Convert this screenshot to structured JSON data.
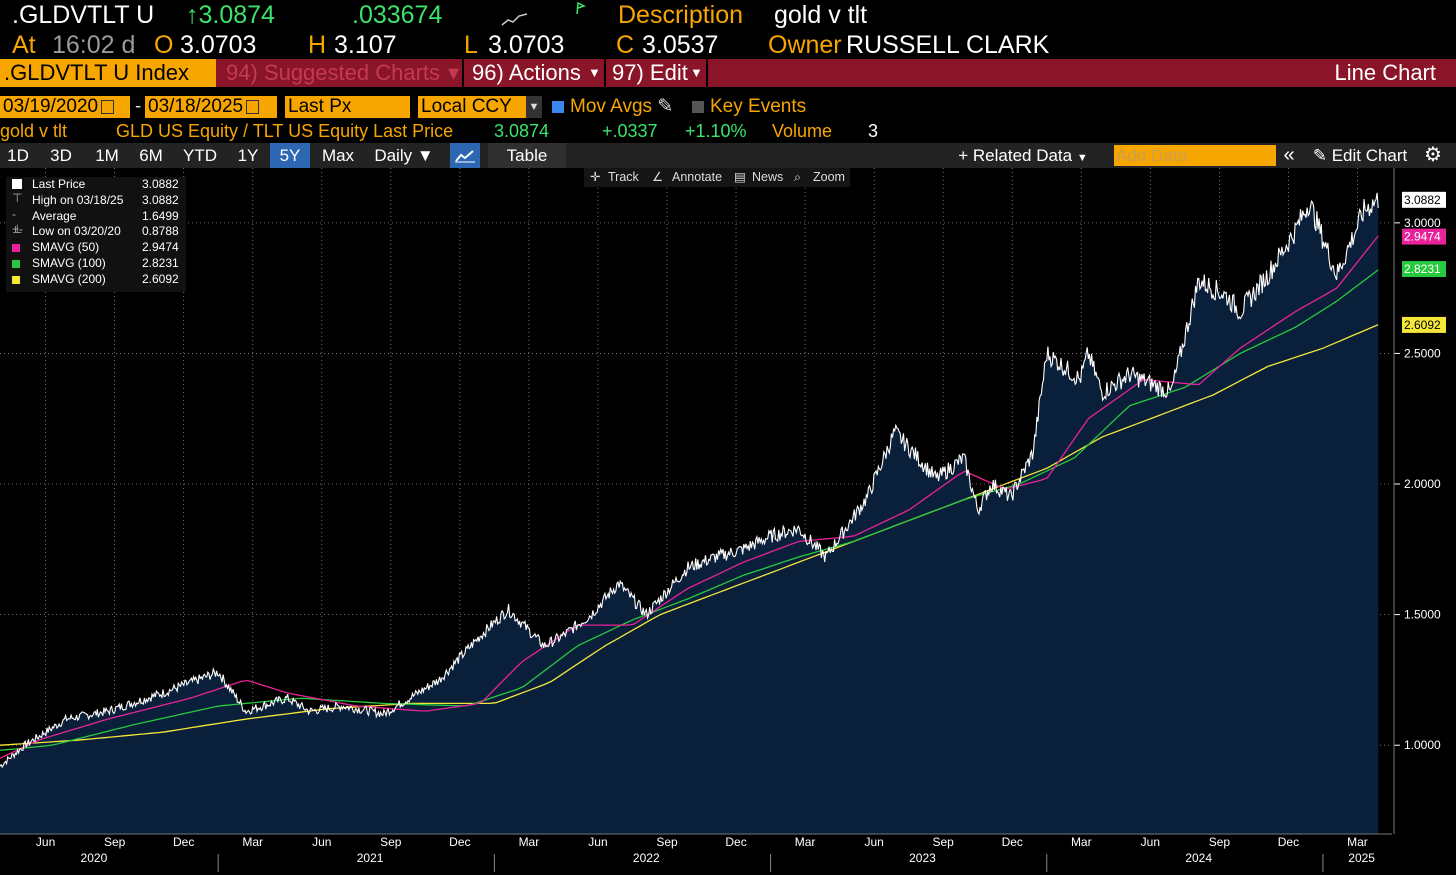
{
  "header": {
    "ticker": ".GLDVTLT U",
    "last": "↑3.0874",
    "change": ".033674",
    "description_label": "Description",
    "description": "gold v tlt",
    "at_label": "At",
    "time": "16:02 d",
    "open_label": "O",
    "open": "3.0703",
    "high_label": "H",
    "high": "3.107",
    "low_label": "L",
    "low": "3.0703",
    "close_label": "C",
    "close": "3.0537",
    "owner_label": "Owner",
    "owner": "RUSSELL CLARK"
  },
  "menubar": {
    "index": ".GLDVTLT U Index",
    "suggested": "94) Suggested Charts",
    "actions": "96) Actions",
    "edit": "97) Edit",
    "line_chart": "Line Chart"
  },
  "controls": {
    "start_date": "03/19/2020",
    "dash": "-",
    "end_date": "03/18/2025",
    "field": "Last Px",
    "currency": "Local CCY",
    "mov_avgs": "Mov Avgs",
    "key_events": "Key Events"
  },
  "info": {
    "name": "gold v tlt",
    "formula": "GLD US Equity / TLT US Equity Last Price",
    "last": "3.0874",
    "change": "+.0337",
    "pct": "+1.10%",
    "volume_label": "Volume",
    "volume": "3"
  },
  "rangebar": {
    "ranges": [
      "1D",
      "3D",
      "1M",
      "6M",
      "YTD",
      "1Y",
      "5Y",
      "Max"
    ],
    "selected": "5Y",
    "frequency": "Daily",
    "table": "Table",
    "related": "+ Related Data",
    "add_data": "Add Data",
    "edit_chart": "Edit Chart"
  },
  "chart_toolbar": {
    "track": "Track",
    "annotate": "Annotate",
    "news": "News",
    "zoom": "Zoom"
  },
  "legend": [
    {
      "label": "Last Price",
      "value": "3.0882",
      "color": "#ffffff"
    },
    {
      "label": "High on 03/18/25",
      "value": "3.0882",
      "color": "none"
    },
    {
      "label": "Average",
      "value": "1.6499",
      "color": "none"
    },
    {
      "label": "Low on 03/20/20",
      "value": "0.8788",
      "color": "none"
    },
    {
      "label": "SMAVG (50)",
      "value": "2.9474",
      "color": "#e8239a"
    },
    {
      "label": "SMAVG (100)",
      "value": "2.8231",
      "color": "#27c93f"
    },
    {
      "label": "SMAVG (200)",
      "value": "2.6092",
      "color": "#f5e63a"
    }
  ],
  "colors": {
    "amber": "#f7a600",
    "fill": "#0a1f3a",
    "price": "#ffffff",
    "sma50": "#e8239a",
    "sma100": "#27c93f",
    "sma200": "#f5e63a",
    "grid": "#8a8a8a"
  },
  "chart_data": {
    "type": "area",
    "y_ticks": [
      "1.0000",
      "1.5000",
      "2.0000",
      "2.5000",
      "3.0000"
    ],
    "ylim": [
      0.66,
      3.21
    ],
    "x_months": [
      "Jun",
      "Sep",
      "Dec",
      "Mar",
      "Jun",
      "Sep",
      "Dec",
      "Mar",
      "Jun",
      "Sep",
      "Dec",
      "Mar",
      "Jun",
      "Sep",
      "Dec",
      "Mar",
      "Jun",
      "Sep",
      "Dec",
      "Mar"
    ],
    "x_years": [
      "2020",
      "2021",
      "2022",
      "2023",
      "2024",
      "2025"
    ],
    "last_value_labels": [
      "3.0882",
      "2.9474",
      "2.8231",
      "2.6092"
    ],
    "series": [
      {
        "name": "Last Price",
        "x": [
          2020.21,
          2020.3,
          2020.45,
          2020.6,
          2020.8,
          2021.0,
          2021.1,
          2021.25,
          2021.33,
          2021.45,
          2021.6,
          2021.8,
          2021.95,
          2022.05,
          2022.18,
          2022.25,
          2022.35,
          2022.45,
          2022.55,
          2022.7,
          2022.8,
          2022.9,
          2023.0,
          2023.1,
          2023.2,
          2023.35,
          2023.45,
          2023.6,
          2023.7,
          2023.75,
          2023.8,
          2023.87,
          2023.95,
          2024.0,
          2024.12,
          2024.15,
          2024.2,
          2024.3,
          2024.45,
          2024.55,
          2024.65,
          2024.7,
          2024.8,
          2024.9,
          2024.95,
          2025.05,
          2025.15,
          2025.2
        ],
        "values": [
          0.92,
          1.0,
          1.1,
          1.13,
          1.2,
          1.28,
          1.13,
          1.18,
          1.13,
          1.15,
          1.12,
          1.25,
          1.42,
          1.52,
          1.38,
          1.42,
          1.5,
          1.62,
          1.5,
          1.68,
          1.72,
          1.75,
          1.8,
          1.83,
          1.72,
          1.95,
          2.2,
          2.02,
          2.1,
          1.9,
          2.0,
          1.95,
          2.12,
          2.5,
          2.4,
          2.5,
          2.35,
          2.42,
          2.35,
          2.78,
          2.72,
          2.66,
          2.8,
          2.97,
          3.08,
          2.8,
          3.05,
          3.09
        ]
      },
      {
        "name": "SMAVG (50)",
        "x": [
          2020.21,
          2020.35,
          2020.6,
          2020.9,
          2021.1,
          2021.25,
          2021.5,
          2021.75,
          2021.95,
          2022.1,
          2022.3,
          2022.5,
          2022.7,
          2022.9,
          2023.1,
          2023.3,
          2023.5,
          2023.7,
          2023.85,
          2024.0,
          2024.15,
          2024.35,
          2024.55,
          2024.7,
          2024.9,
          2025.05,
          2025.2
        ],
        "values": [
          0.95,
          1.02,
          1.1,
          1.18,
          1.25,
          1.2,
          1.15,
          1.13,
          1.16,
          1.32,
          1.46,
          1.46,
          1.6,
          1.7,
          1.78,
          1.8,
          1.9,
          2.05,
          1.98,
          2.02,
          2.25,
          2.4,
          2.38,
          2.52,
          2.66,
          2.75,
          2.95
        ]
      },
      {
        "name": "SMAVG (100)",
        "x": [
          2020.21,
          2020.4,
          2020.7,
          2021.0,
          2021.3,
          2021.6,
          2021.9,
          2022.1,
          2022.3,
          2022.5,
          2022.7,
          2022.9,
          2023.1,
          2023.3,
          2023.5,
          2023.7,
          2023.9,
          2024.1,
          2024.3,
          2024.5,
          2024.7,
          2024.9,
          2025.05,
          2025.2
        ],
        "values": [
          0.98,
          1.0,
          1.08,
          1.15,
          1.18,
          1.16,
          1.15,
          1.22,
          1.38,
          1.48,
          1.56,
          1.65,
          1.72,
          1.78,
          1.86,
          1.94,
          2.0,
          2.1,
          2.3,
          2.37,
          2.5,
          2.6,
          2.7,
          2.82
        ]
      },
      {
        "name": "SMAVG (200)",
        "x": [
          2020.21,
          2020.5,
          2020.8,
          2021.1,
          2021.4,
          2021.7,
          2022.0,
          2022.2,
          2022.4,
          2022.6,
          2022.8,
          2023.0,
          2023.2,
          2023.4,
          2023.6,
          2023.8,
          2024.0,
          2024.2,
          2024.4,
          2024.6,
          2024.8,
          2025.0,
          2025.2
        ],
        "values": [
          1.0,
          1.02,
          1.05,
          1.1,
          1.14,
          1.16,
          1.16,
          1.24,
          1.38,
          1.5,
          1.58,
          1.66,
          1.74,
          1.82,
          1.9,
          1.98,
          2.06,
          2.18,
          2.26,
          2.34,
          2.45,
          2.52,
          2.61
        ]
      }
    ]
  }
}
